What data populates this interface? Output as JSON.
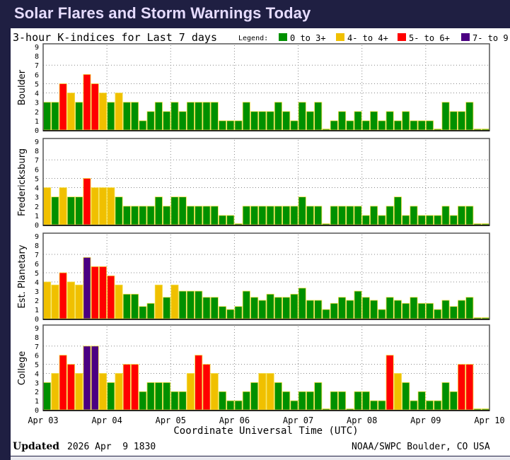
{
  "page": {
    "title": "Solar Flares and Storm Warnings Today"
  },
  "chart_data": {
    "type": "bar",
    "title": "3-hour K-indices for Last 7 days",
    "legend": {
      "label": "Legend:",
      "placement": "top-right",
      "items": [
        {
          "label": "0 to 3+",
          "color": "#009000"
        },
        {
          "label": "4- to 4+",
          "color": "#f0c000"
        },
        {
          "label": "5- to 6+",
          "color": "#ff0000"
        },
        {
          "label": "7- to 9",
          "color": "#4b0082"
        }
      ]
    },
    "xlabel": "Coordinate Universal Time (UTC)",
    "x_ticks": [
      "Apr 03",
      "Apr 04",
      "Apr 05",
      "Apr 06",
      "Apr 07",
      "Apr 08",
      "Apr 09",
      "Apr 10"
    ],
    "y_ticks": [
      "0",
      "1",
      "2",
      "3",
      "4",
      "5",
      "6",
      "7",
      "8",
      "9"
    ],
    "ylim": [
      0,
      9
    ],
    "grid_levels": [
      4,
      5,
      7
    ],
    "bar_interval_hours": 3,
    "series": [
      {
        "name": "Boulder",
        "values": [
          3,
          3,
          5,
          4,
          3,
          6,
          5,
          4,
          3,
          4,
          3,
          3,
          1,
          2,
          3,
          2,
          3,
          2,
          3,
          3,
          3,
          3,
          1,
          1,
          1,
          3,
          2,
          2,
          2,
          3,
          2,
          1,
          3,
          2,
          3,
          0,
          1,
          2,
          1,
          2,
          1,
          2,
          1,
          2,
          1,
          2,
          1,
          1,
          1,
          0,
          3,
          2,
          2,
          3,
          0,
          0
        ]
      },
      {
        "name": "Fredericksburg",
        "values": [
          4,
          3,
          4,
          3,
          3,
          5,
          4,
          4,
          4,
          3,
          2,
          2,
          2,
          2,
          3,
          2,
          3,
          3,
          2,
          2,
          2,
          2,
          1,
          1,
          0,
          2,
          2,
          2,
          2,
          2,
          2,
          2,
          3,
          2,
          2,
          0,
          2,
          2,
          2,
          2,
          1,
          2,
          1,
          2,
          3,
          1,
          2,
          1,
          1,
          1,
          2,
          1,
          2,
          2,
          0,
          0
        ]
      },
      {
        "name": "Est. Planetary",
        "values": [
          4,
          3.67,
          5,
          4,
          3.67,
          6.67,
          5.67,
          5.67,
          4.67,
          3.67,
          2.67,
          2.67,
          1.33,
          1.67,
          3.67,
          2.33,
          3.67,
          3,
          3,
          3,
          2.33,
          2.33,
          1.33,
          1,
          1.33,
          3,
          2.33,
          2,
          2.67,
          2.33,
          2.33,
          2.67,
          3.33,
          2,
          2,
          1,
          1.67,
          2.33,
          2,
          3,
          2.33,
          2,
          1,
          2.33,
          2,
          1.67,
          2.33,
          1.67,
          1.67,
          1,
          2,
          1.33,
          2,
          2.33,
          0,
          0
        ]
      },
      {
        "name": "College",
        "values": [
          3,
          4,
          6,
          5,
          4,
          7,
          7,
          4,
          3,
          4,
          5,
          5,
          2,
          3,
          3,
          3,
          2,
          2,
          4,
          6,
          5,
          4,
          2,
          1,
          1,
          2,
          3,
          4,
          4,
          3,
          2,
          1,
          2,
          2,
          3,
          0,
          2,
          2,
          0,
          2,
          2,
          1,
          1,
          6,
          4,
          3,
          1,
          2,
          1,
          1,
          3,
          2,
          5,
          5,
          0,
          0
        ]
      }
    ],
    "footer": {
      "updated_label": "Updated",
      "updated_value": "2026 Apr  9 1830",
      "source": "NOAA/SWPC Boulder, CO USA"
    }
  }
}
